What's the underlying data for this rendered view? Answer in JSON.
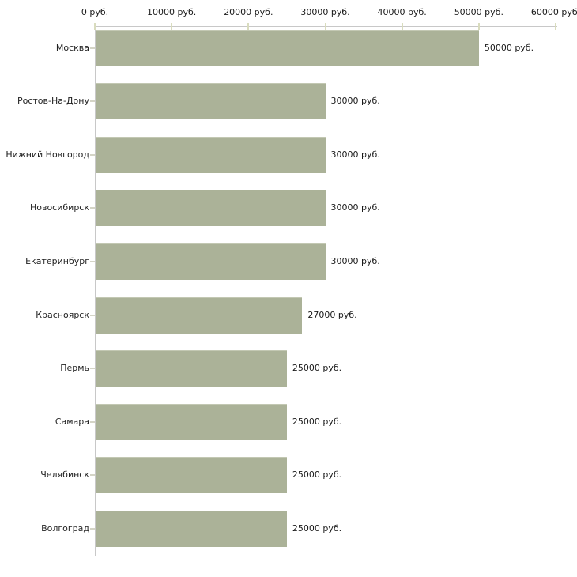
{
  "chart_data": {
    "type": "bar",
    "orientation": "horizontal",
    "title": "",
    "xlabel": "",
    "ylabel": "",
    "categories": [
      "Москва",
      "Ростов-На-Дону",
      "Нижний Новгород",
      "Новосибирск",
      "Екатеринбург",
      "Красноярск",
      "Пермь",
      "Самара",
      "Челябинск",
      "Волгоград"
    ],
    "values": [
      50000,
      30000,
      30000,
      30000,
      30000,
      27000,
      25000,
      25000,
      25000,
      25000
    ],
    "value_labels": [
      "50000 руб.",
      "30000 руб.",
      "30000 руб.",
      "30000 руб.",
      "30000 руб.",
      "27000 руб.",
      "25000 руб.",
      "25000 руб.",
      "25000 руб.",
      "25000 руб."
    ],
    "x_ticks": [
      0,
      10000,
      20000,
      30000,
      40000,
      50000,
      60000
    ],
    "x_tick_labels": [
      "0 руб.",
      "10000 руб.",
      "20000 руб.",
      "30000 руб.",
      "40000 руб.",
      "50000 руб.",
      "60000 руб."
    ],
    "xlim": [
      0,
      60000
    ],
    "grid": false,
    "legend": false,
    "colors": {
      "bar_fill": "#abb298",
      "bar_top_edge": "#c3c8b3",
      "axis_line": "#c8c8c8",
      "axis_tick": "#d9dcbe",
      "text": "#1a1a1a"
    }
  }
}
